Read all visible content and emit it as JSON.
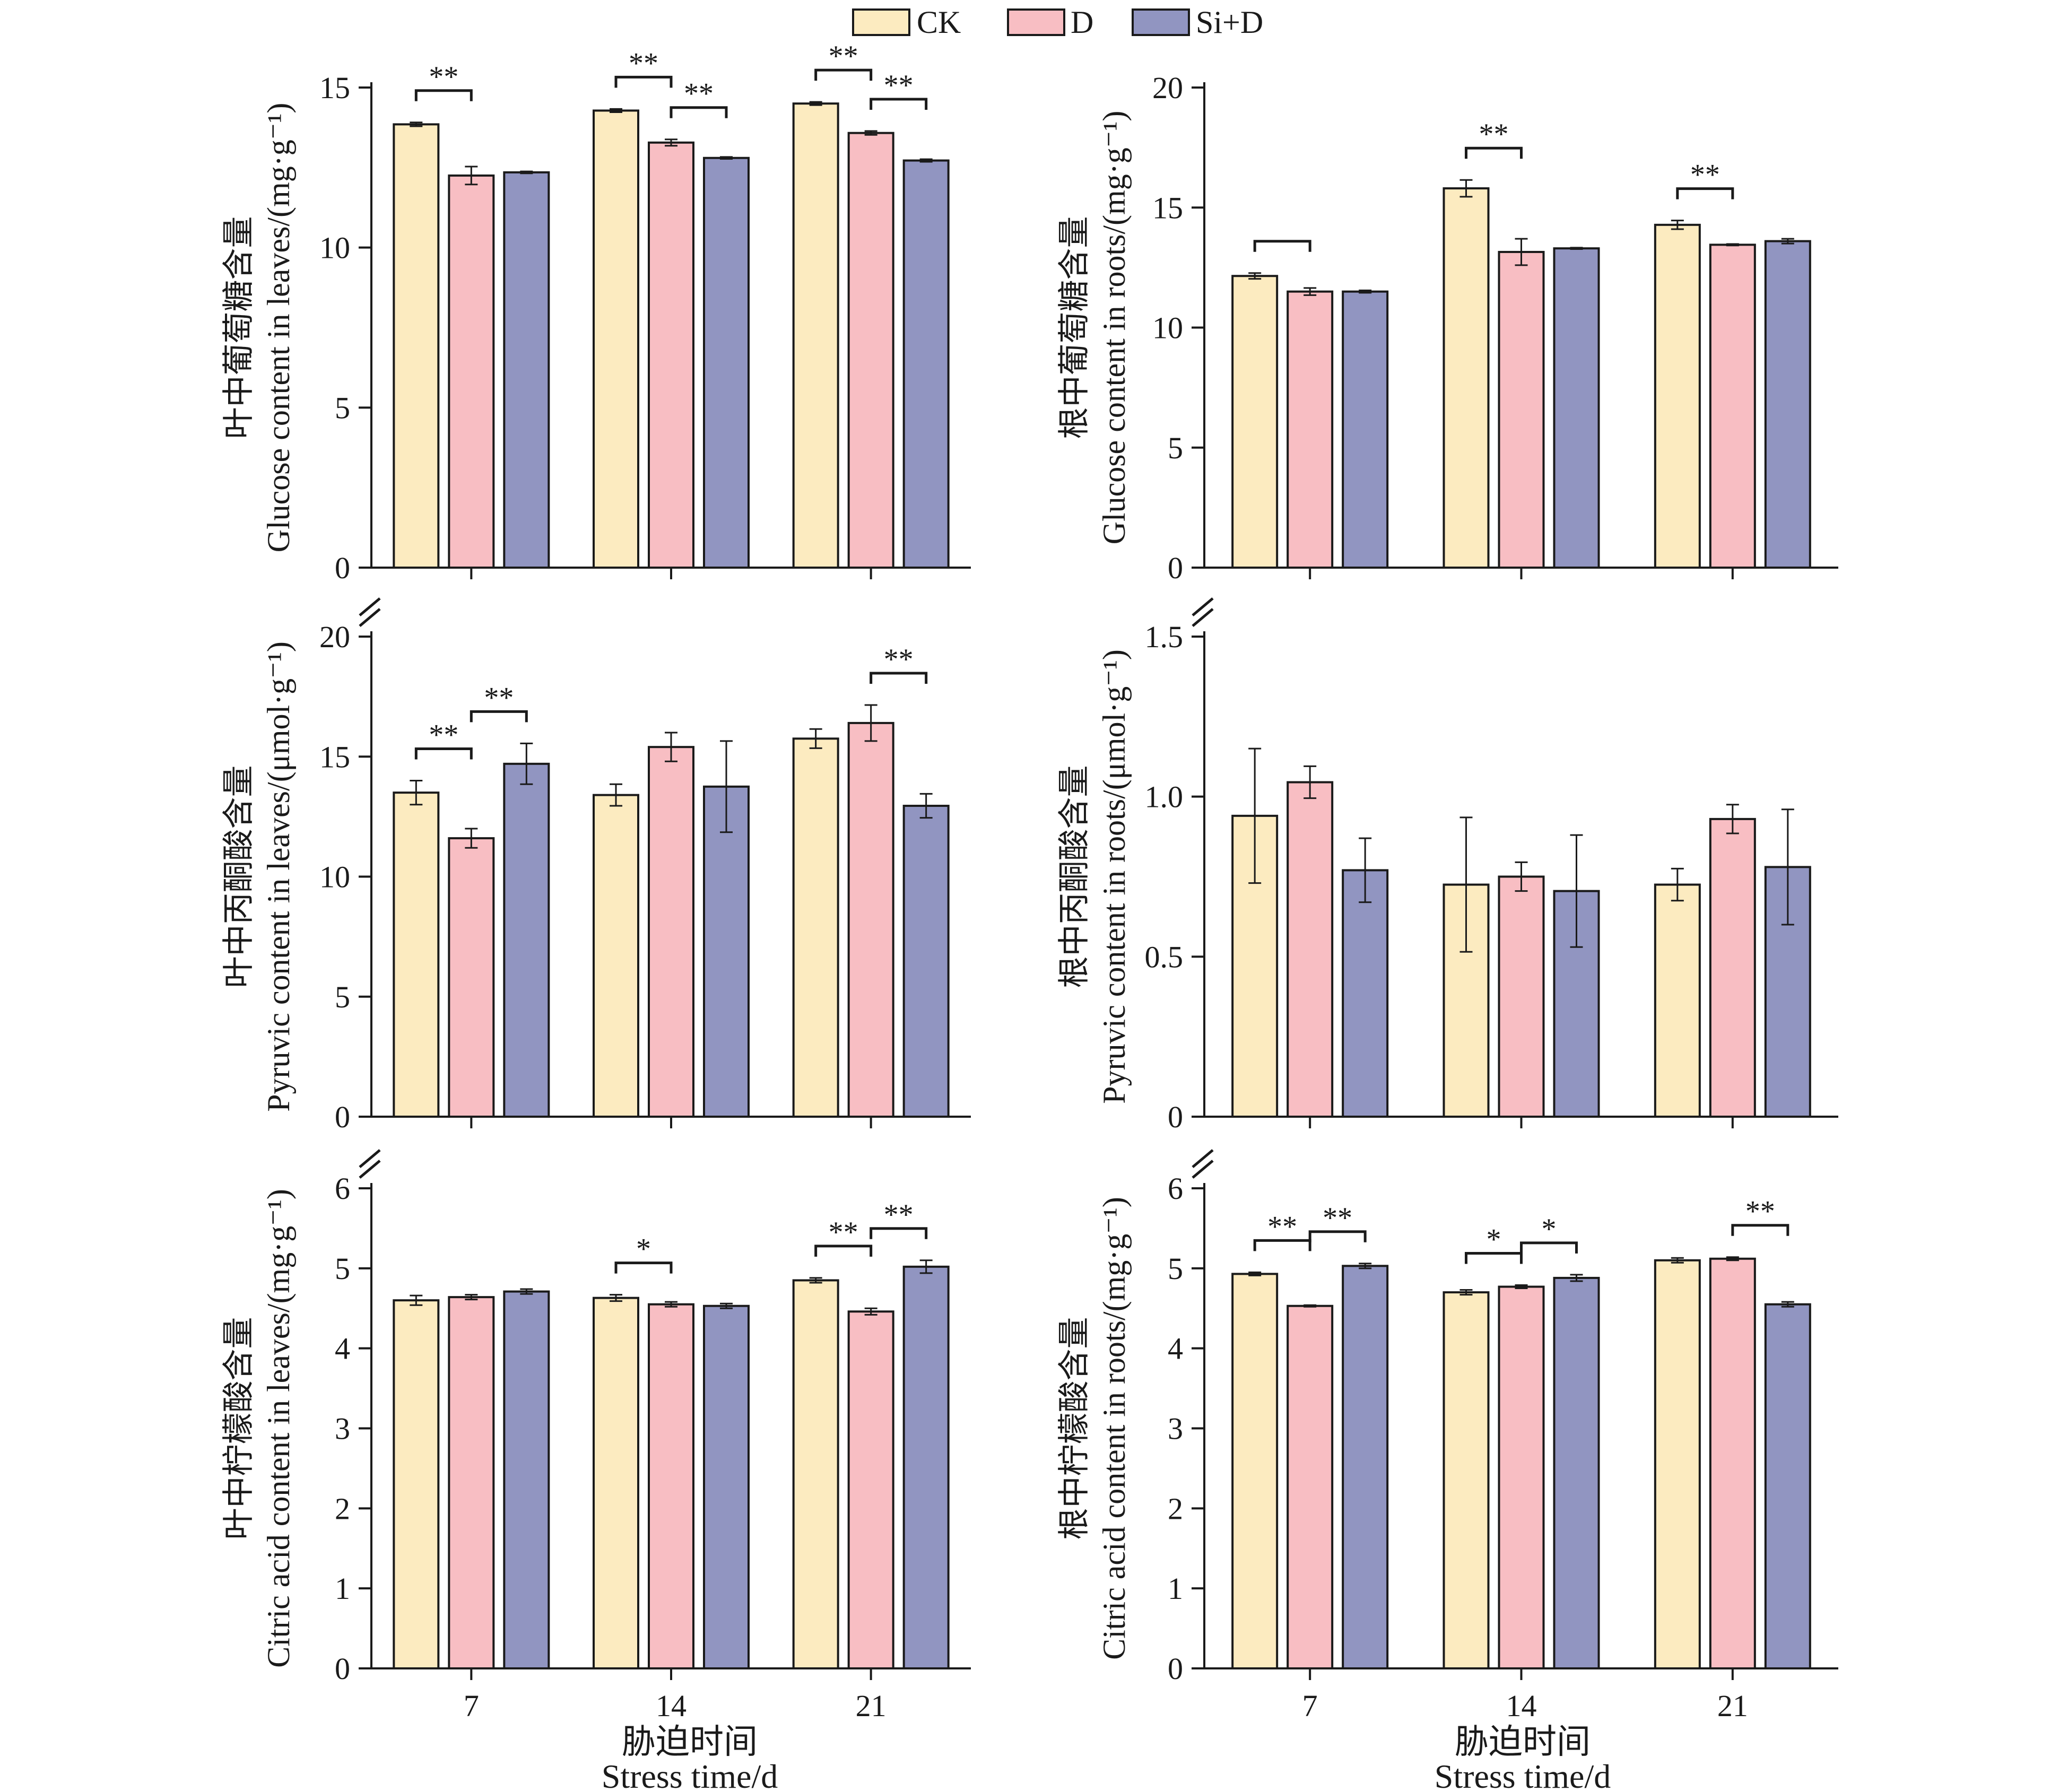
{
  "legend": [
    {
      "name": "CK",
      "color": "#FCEBC0"
    },
    {
      "name": "D",
      "color": "#F8BEC3"
    },
    {
      "name": "Si+D",
      "color": "#9195C1"
    }
  ],
  "x_title": {
    "zh": "胁迫时间",
    "en": "Stress time/d"
  },
  "chart_data": [
    {
      "type": "bar",
      "ylabel_zh": "叶中葡萄糖含量",
      "ylabel_en": "Glucose content in leaves/(mg·g⁻¹)",
      "categories": [
        "7",
        "14",
        "21"
      ],
      "ylim": [
        0,
        15
      ],
      "yticks": [
        0,
        5,
        10,
        15
      ],
      "series": [
        {
          "name": "CK",
          "values": [
            13.85,
            14.28,
            14.5
          ],
          "errors": [
            0.06,
            0.05,
            0.05
          ]
        },
        {
          "name": "D",
          "values": [
            12.25,
            13.28,
            13.58
          ],
          "errors": [
            0.28,
            0.1,
            0.06
          ]
        },
        {
          "name": "Si+D",
          "values": [
            12.35,
            12.8,
            12.72
          ],
          "errors": [
            0.03,
            0.03,
            0.04
          ]
        }
      ],
      "significance": [
        {
          "group": 0,
          "from": 0,
          "to": 1,
          "label": "**"
        },
        {
          "group": 1,
          "from": 0,
          "to": 1,
          "label": "**"
        },
        {
          "group": 1,
          "from": 1,
          "to": 2,
          "label": "**"
        },
        {
          "group": 2,
          "from": 0,
          "to": 1,
          "label": "**"
        },
        {
          "group": 2,
          "from": 1,
          "to": 2,
          "label": "**"
        }
      ]
    },
    {
      "type": "bar",
      "ylabel_zh": "根中葡萄糖含量",
      "ylabel_en": "Glucose content in roots/(mg·g⁻¹)",
      "categories": [
        "7",
        "14",
        "21"
      ],
      "ylim": [
        0,
        20
      ],
      "yticks": [
        0,
        5,
        10,
        15,
        20
      ],
      "series": [
        {
          "name": "CK",
          "values": [
            12.15,
            15.8,
            14.28
          ],
          "errors": [
            0.12,
            0.35,
            0.18
          ]
        },
        {
          "name": "D",
          "values": [
            11.5,
            13.15,
            13.45
          ],
          "errors": [
            0.15,
            0.55,
            0.03
          ]
        },
        {
          "name": "Si+D",
          "values": [
            11.5,
            13.3,
            13.6
          ],
          "errors": [
            0.05,
            0.03,
            0.1
          ]
        }
      ],
      "significance": [
        {
          "group": 0,
          "from": 0,
          "to": 1,
          "label": ""
        },
        {
          "group": 1,
          "from": 0,
          "to": 1,
          "label": "**"
        },
        {
          "group": 2,
          "from": 0,
          "to": 1,
          "label": "**"
        }
      ]
    },
    {
      "type": "bar",
      "ylabel_zh": "叶中丙酮酸含量",
      "ylabel_en": "Pyruvic content in leaves/(μmol·g⁻¹)",
      "categories": [
        "7",
        "14",
        "21"
      ],
      "ylim": [
        0,
        20
      ],
      "yticks": [
        0,
        5,
        10,
        15,
        20
      ],
      "series": [
        {
          "name": "CK",
          "values": [
            13.5,
            13.4,
            15.75
          ],
          "errors": [
            0.5,
            0.45,
            0.4
          ]
        },
        {
          "name": "D",
          "values": [
            11.6,
            15.4,
            16.4
          ],
          "errors": [
            0.4,
            0.6,
            0.75
          ]
        },
        {
          "name": "Si+D",
          "values": [
            14.7,
            13.75,
            12.95
          ],
          "errors": [
            0.85,
            1.9,
            0.5
          ]
        }
      ],
      "significance": [
        {
          "group": 0,
          "from": 0,
          "to": 1,
          "label": "**"
        },
        {
          "group": 0,
          "from": 1,
          "to": 2,
          "label": "**"
        },
        {
          "group": 2,
          "from": 1,
          "to": 2,
          "label": "**"
        }
      ]
    },
    {
      "type": "bar",
      "ylabel_zh": "根中丙酮酸含量",
      "ylabel_en": "Pyruvic content in roots/(μmol·g⁻¹)",
      "categories": [
        "7",
        "14",
        "21"
      ],
      "ylim": [
        0,
        1.5
      ],
      "yticks": [
        0,
        0.5,
        1.0,
        1.5
      ],
      "ytick_labels": [
        "0",
        "0.5",
        "1.0",
        "1.5"
      ],
      "series": [
        {
          "name": "CK",
          "values": [
            0.94,
            0.725,
            0.725
          ],
          "errors": [
            0.21,
            0.21,
            0.05
          ]
        },
        {
          "name": "D",
          "values": [
            1.045,
            0.75,
            0.93
          ],
          "errors": [
            0.05,
            0.045,
            0.045
          ]
        },
        {
          "name": "Si+D",
          "values": [
            0.77,
            0.705,
            0.78
          ],
          "errors": [
            0.1,
            0.175,
            0.18
          ]
        }
      ],
      "significance": []
    },
    {
      "type": "bar",
      "ylabel_zh": "叶中柠檬酸含量",
      "ylabel_en": "Citric acid content in leaves/(mg·g⁻¹)",
      "categories": [
        "7",
        "14",
        "21"
      ],
      "ylim": [
        0,
        6
      ],
      "yticks": [
        0,
        1,
        2,
        3,
        4,
        5,
        6
      ],
      "series": [
        {
          "name": "CK",
          "values": [
            4.6,
            4.63,
            4.85
          ],
          "errors": [
            0.06,
            0.04,
            0.03
          ]
        },
        {
          "name": "D",
          "values": [
            4.64,
            4.55,
            4.46
          ],
          "errors": [
            0.03,
            0.03,
            0.04
          ]
        },
        {
          "name": "Si+D",
          "values": [
            4.71,
            4.53,
            5.02
          ],
          "errors": [
            0.03,
            0.03,
            0.08
          ]
        }
      ],
      "significance": [
        {
          "group": 1,
          "from": 0,
          "to": 1,
          "label": "*"
        },
        {
          "group": 2,
          "from": 0,
          "to": 1,
          "label": "**"
        },
        {
          "group": 2,
          "from": 1,
          "to": 2,
          "label": "**"
        }
      ]
    },
    {
      "type": "bar",
      "ylabel_zh": "根中柠檬酸含量",
      "ylabel_en": "Citric acid content in roots/(mg·g⁻¹)",
      "categories": [
        "7",
        "14",
        "21"
      ],
      "ylim": [
        0,
        6
      ],
      "yticks": [
        0,
        1,
        2,
        3,
        4,
        5,
        6
      ],
      "series": [
        {
          "name": "CK",
          "values": [
            4.93,
            4.7,
            5.1
          ],
          "errors": [
            0.02,
            0.03,
            0.03
          ]
        },
        {
          "name": "D",
          "values": [
            4.53,
            4.77,
            5.12
          ],
          "errors": [
            0.01,
            0.02,
            0.02
          ]
        },
        {
          "name": "Si+D",
          "values": [
            5.03,
            4.88,
            4.55
          ],
          "errors": [
            0.03,
            0.04,
            0.03
          ]
        }
      ],
      "significance": [
        {
          "group": 0,
          "from": 0,
          "to": 1,
          "label": "**"
        },
        {
          "group": 0,
          "from": 1,
          "to": 2,
          "label": "**"
        },
        {
          "group": 1,
          "from": 0,
          "to": 1,
          "label": "*"
        },
        {
          "group": 1,
          "from": 1,
          "to": 2,
          "label": "*"
        },
        {
          "group": 2,
          "from": 1,
          "to": 2,
          "label": "**"
        }
      ]
    }
  ]
}
